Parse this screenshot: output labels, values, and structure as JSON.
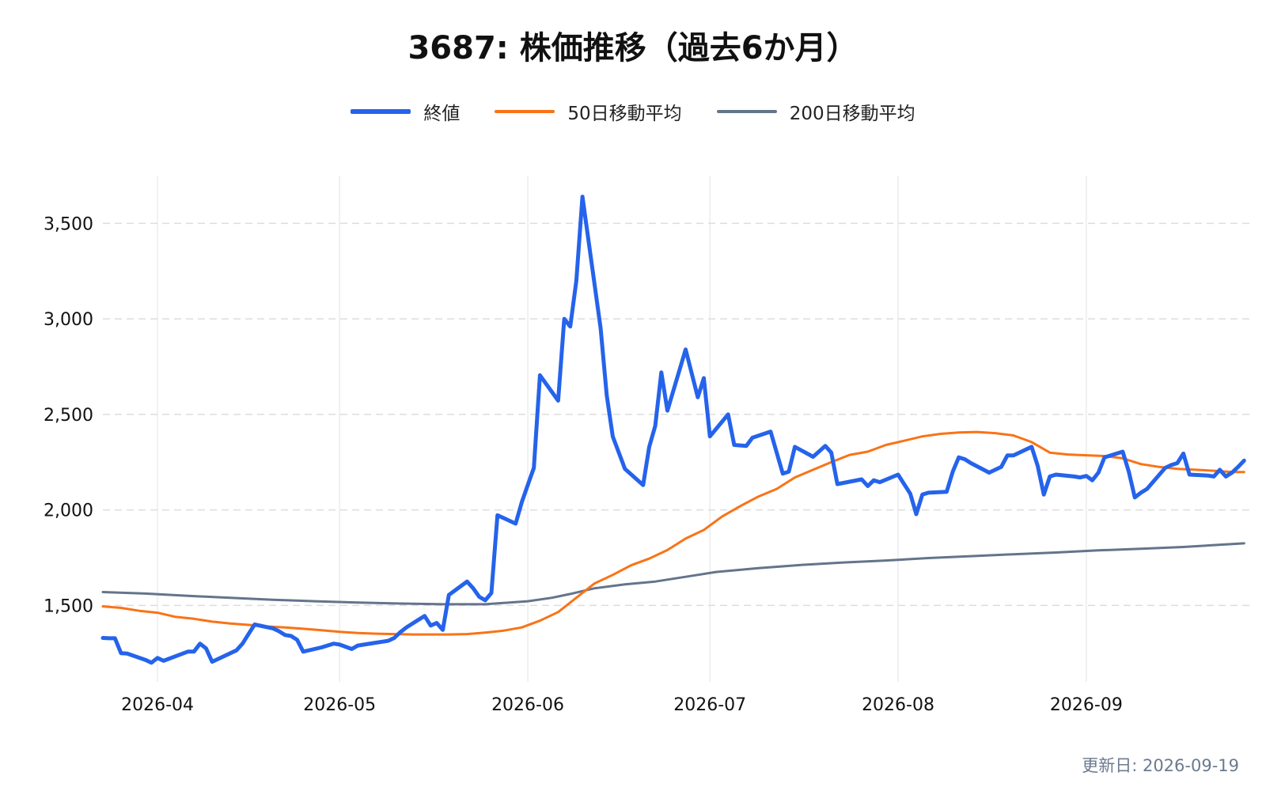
{
  "title": "3687: 株価推移（過去6か月）",
  "updated": "更新日: 2026-09-19",
  "chart_data": {
    "type": "line",
    "title": "3687: 株価推移（過去6か月）",
    "xlabel": "",
    "ylabel": "",
    "ylim": [
      1100,
      3750
    ],
    "xlim": [
      "2026-03-23",
      "2026-09-28"
    ],
    "y_ticks": [
      1500,
      2000,
      2500,
      3000,
      3500
    ],
    "y_tick_labels": [
      "1,500",
      "2,000",
      "2,500",
      "3,000",
      "3,500"
    ],
    "x_ticks": [
      "2026-04-01",
      "2026-05-01",
      "2026-06-01",
      "2026-07-01",
      "2026-08-01",
      "2026-09-01"
    ],
    "x_tick_labels": [
      "2026-04",
      "2026-05",
      "2026-06",
      "2026-07",
      "2026-08",
      "2026-09"
    ],
    "grid": "horizontal dashed, vertical light",
    "legend": "top-center",
    "series": [
      {
        "name": "終値",
        "color": "#2563eb",
        "points": [
          [
            "2026-03-23",
            1330
          ],
          [
            "2026-03-24",
            1328
          ],
          [
            "2026-03-25",
            1328
          ],
          [
            "2026-03-26",
            1250
          ],
          [
            "2026-03-27",
            1248
          ],
          [
            "2026-03-30",
            1215
          ],
          [
            "2026-03-31",
            1200
          ],
          [
            "2026-04-01",
            1225
          ],
          [
            "2026-04-02",
            1210
          ],
          [
            "2026-04-06",
            1258
          ],
          [
            "2026-04-07",
            1258
          ],
          [
            "2026-04-08",
            1300
          ],
          [
            "2026-04-09",
            1275
          ],
          [
            "2026-04-10",
            1205
          ],
          [
            "2026-04-14",
            1265
          ],
          [
            "2026-04-15",
            1300
          ],
          [
            "2026-04-16",
            1350
          ],
          [
            "2026-04-17",
            1400
          ],
          [
            "2026-04-20",
            1380
          ],
          [
            "2026-04-21",
            1365
          ],
          [
            "2026-04-22",
            1345
          ],
          [
            "2026-04-23",
            1340
          ],
          [
            "2026-04-24",
            1320
          ],
          [
            "2026-04-25",
            1258
          ],
          [
            "2026-04-28",
            1280
          ],
          [
            "2026-04-30",
            1300
          ],
          [
            "2026-05-01",
            1295
          ],
          [
            "2026-05-03",
            1272
          ],
          [
            "2026-05-04",
            1290
          ],
          [
            "2026-05-07",
            1305
          ],
          [
            "2026-05-08",
            1310
          ],
          [
            "2026-05-09",
            1315
          ],
          [
            "2026-05-10",
            1330
          ],
          [
            "2026-05-11",
            1360
          ],
          [
            "2026-05-12",
            1385
          ],
          [
            "2026-05-14",
            1425
          ],
          [
            "2026-05-15",
            1445
          ],
          [
            "2026-05-16",
            1395
          ],
          [
            "2026-05-17",
            1408
          ],
          [
            "2026-05-18",
            1372
          ],
          [
            "2026-05-19",
            1555
          ],
          [
            "2026-05-22",
            1625
          ],
          [
            "2026-05-23",
            1590
          ],
          [
            "2026-05-24",
            1545
          ],
          [
            "2026-05-25",
            1527
          ],
          [
            "2026-05-26",
            1565
          ],
          [
            "2026-05-27",
            1972
          ],
          [
            "2026-05-30",
            1928
          ],
          [
            "2026-05-31",
            2040
          ],
          [
            "2026-06-01",
            2130
          ],
          [
            "2026-06-02",
            2220
          ],
          [
            "2026-06-03",
            2705
          ],
          [
            "2026-06-06",
            2572
          ],
          [
            "2026-06-07",
            3000
          ],
          [
            "2026-06-08",
            2960
          ],
          [
            "2026-06-09",
            3200
          ],
          [
            "2026-06-10",
            3640
          ],
          [
            "2026-06-13",
            2950
          ],
          [
            "2026-06-14",
            2600
          ],
          [
            "2026-06-15",
            2385
          ],
          [
            "2026-06-17",
            2215
          ],
          [
            "2026-06-20",
            2130
          ],
          [
            "2026-06-21",
            2330
          ],
          [
            "2026-06-22",
            2440
          ],
          [
            "2026-06-23",
            2720
          ],
          [
            "2026-06-24",
            2520
          ],
          [
            "2026-06-27",
            2840
          ],
          [
            "2026-06-29",
            2590
          ],
          [
            "2026-06-30",
            2690
          ],
          [
            "2026-07-01",
            2385
          ],
          [
            "2026-07-04",
            2500
          ],
          [
            "2026-07-05",
            2340
          ],
          [
            "2026-07-07",
            2335
          ],
          [
            "2026-07-08",
            2378
          ],
          [
            "2026-07-11",
            2410
          ],
          [
            "2026-07-13",
            2190
          ],
          [
            "2026-07-14",
            2200
          ],
          [
            "2026-07-15",
            2330
          ],
          [
            "2026-07-18",
            2278
          ],
          [
            "2026-07-20",
            2335
          ],
          [
            "2026-07-21",
            2300
          ],
          [
            "2026-07-22",
            2135
          ],
          [
            "2026-07-26",
            2160
          ],
          [
            "2026-07-27",
            2125
          ],
          [
            "2026-07-28",
            2155
          ],
          [
            "2026-07-29",
            2145
          ],
          [
            "2026-08-01",
            2185
          ],
          [
            "2026-08-03",
            2085
          ],
          [
            "2026-08-04",
            1978
          ],
          [
            "2026-08-05",
            2080
          ],
          [
            "2026-08-06",
            2090
          ],
          [
            "2026-08-09",
            2095
          ],
          [
            "2026-08-10",
            2200
          ],
          [
            "2026-08-11",
            2275
          ],
          [
            "2026-08-12",
            2265
          ],
          [
            "2026-08-13",
            2245
          ],
          [
            "2026-08-16",
            2195
          ],
          [
            "2026-08-18",
            2225
          ],
          [
            "2026-08-19",
            2285
          ],
          [
            "2026-08-20",
            2285
          ],
          [
            "2026-08-23",
            2330
          ],
          [
            "2026-08-24",
            2230
          ],
          [
            "2026-08-25",
            2080
          ],
          [
            "2026-08-26",
            2175
          ],
          [
            "2026-08-27",
            2185
          ],
          [
            "2026-08-30",
            2175
          ],
          [
            "2026-08-31",
            2170
          ],
          [
            "2026-09-01",
            2178
          ],
          [
            "2026-09-02",
            2155
          ],
          [
            "2026-09-03",
            2195
          ],
          [
            "2026-09-04",
            2275
          ],
          [
            "2026-09-07",
            2305
          ],
          [
            "2026-09-08",
            2200
          ],
          [
            "2026-09-09",
            2065
          ],
          [
            "2026-09-10",
            2090
          ],
          [
            "2026-09-11",
            2110
          ],
          [
            "2026-09-14",
            2220
          ],
          [
            "2026-09-15",
            2235
          ],
          [
            "2026-09-16",
            2245
          ],
          [
            "2026-09-17",
            2295
          ],
          [
            "2026-09-18",
            2185
          ],
          [
            "2026-09-21",
            2180
          ],
          [
            "2026-09-22",
            2175
          ],
          [
            "2026-09-23",
            2210
          ],
          [
            "2026-09-24",
            2175
          ],
          [
            "2026-09-25",
            2195
          ],
          [
            "2026-09-26",
            2225
          ],
          [
            "2026-09-27",
            2258
          ]
        ]
      },
      {
        "name": "50日移動平均",
        "color": "#f97316",
        "points": [
          [
            "2026-03-23",
            1495
          ],
          [
            "2026-03-26",
            1487
          ],
          [
            "2026-03-29",
            1472
          ],
          [
            "2026-04-01",
            1462
          ],
          [
            "2026-04-04",
            1440
          ],
          [
            "2026-04-07",
            1430
          ],
          [
            "2026-04-10",
            1415
          ],
          [
            "2026-04-13",
            1405
          ],
          [
            "2026-04-16",
            1398
          ],
          [
            "2026-04-19",
            1390
          ],
          [
            "2026-04-22",
            1385
          ],
          [
            "2026-04-25",
            1378
          ],
          [
            "2026-04-28",
            1370
          ],
          [
            "2026-05-01",
            1362
          ],
          [
            "2026-05-04",
            1356
          ],
          [
            "2026-05-07",
            1352
          ],
          [
            "2026-05-10",
            1350
          ],
          [
            "2026-05-13",
            1348
          ],
          [
            "2026-05-16",
            1348
          ],
          [
            "2026-05-19",
            1348
          ],
          [
            "2026-05-22",
            1350
          ],
          [
            "2026-05-25",
            1358
          ],
          [
            "2026-05-28",
            1368
          ],
          [
            "2026-05-31",
            1385
          ],
          [
            "2026-06-03",
            1420
          ],
          [
            "2026-06-06",
            1465
          ],
          [
            "2026-06-09",
            1540
          ],
          [
            "2026-06-12",
            1615
          ],
          [
            "2026-06-15",
            1660
          ],
          [
            "2026-06-18",
            1710
          ],
          [
            "2026-06-21",
            1745
          ],
          [
            "2026-06-24",
            1790
          ],
          [
            "2026-06-27",
            1850
          ],
          [
            "2026-06-30",
            1895
          ],
          [
            "2026-07-03",
            1965
          ],
          [
            "2026-07-06",
            2020
          ],
          [
            "2026-07-09",
            2070
          ],
          [
            "2026-07-12",
            2110
          ],
          [
            "2026-07-15",
            2170
          ],
          [
            "2026-07-18",
            2210
          ],
          [
            "2026-07-21",
            2250
          ],
          [
            "2026-07-24",
            2288
          ],
          [
            "2026-07-27",
            2305
          ],
          [
            "2026-07-30",
            2340
          ],
          [
            "2026-08-02",
            2362
          ],
          [
            "2026-08-05",
            2385
          ],
          [
            "2026-08-08",
            2398
          ],
          [
            "2026-08-11",
            2405
          ],
          [
            "2026-08-14",
            2408
          ],
          [
            "2026-08-17",
            2402
          ],
          [
            "2026-08-20",
            2390
          ],
          [
            "2026-08-23",
            2355
          ],
          [
            "2026-08-26",
            2300
          ],
          [
            "2026-08-29",
            2290
          ],
          [
            "2026-09-01",
            2286
          ],
          [
            "2026-09-04",
            2282
          ],
          [
            "2026-09-07",
            2270
          ],
          [
            "2026-09-10",
            2240
          ],
          [
            "2026-09-13",
            2225
          ],
          [
            "2026-09-16",
            2215
          ],
          [
            "2026-09-19",
            2210
          ],
          [
            "2026-09-22",
            2205
          ],
          [
            "2026-09-25",
            2198
          ],
          [
            "2026-09-27",
            2198
          ]
        ]
      },
      {
        "name": "200日移動平均",
        "color": "#64748b",
        "points": [
          [
            "2026-03-23",
            1570
          ],
          [
            "2026-03-30",
            1562
          ],
          [
            "2026-04-06",
            1550
          ],
          [
            "2026-04-13",
            1540
          ],
          [
            "2026-04-20",
            1530
          ],
          [
            "2026-04-27",
            1522
          ],
          [
            "2026-05-04",
            1515
          ],
          [
            "2026-05-11",
            1510
          ],
          [
            "2026-05-18",
            1506
          ],
          [
            "2026-05-25",
            1506
          ],
          [
            "2026-06-01",
            1522
          ],
          [
            "2026-06-05",
            1540
          ],
          [
            "2026-06-08",
            1560
          ],
          [
            "2026-06-12",
            1590
          ],
          [
            "2026-06-17",
            1610
          ],
          [
            "2026-06-22",
            1625
          ],
          [
            "2026-06-27",
            1650
          ],
          [
            "2026-07-02",
            1675
          ],
          [
            "2026-07-09",
            1695
          ],
          [
            "2026-07-16",
            1712
          ],
          [
            "2026-07-23",
            1725
          ],
          [
            "2026-07-30",
            1735
          ],
          [
            "2026-08-06",
            1748
          ],
          [
            "2026-08-13",
            1758
          ],
          [
            "2026-08-20",
            1768
          ],
          [
            "2026-08-27",
            1777
          ],
          [
            "2026-09-03",
            1788
          ],
          [
            "2026-09-10",
            1797
          ],
          [
            "2026-09-17",
            1806
          ],
          [
            "2026-09-27",
            1825
          ]
        ]
      }
    ]
  }
}
